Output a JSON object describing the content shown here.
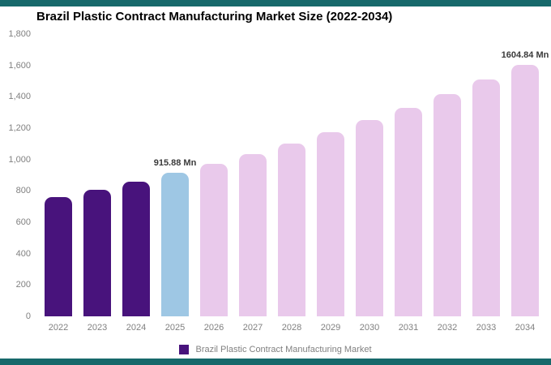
{
  "page": {
    "accent_bar_color": "#17696b"
  },
  "chart_data": {
    "type": "bar",
    "title": "Brazil Plastic Contract Manufacturing Market Size (2022-2034)",
    "categories": [
      "2022",
      "2023",
      "2024",
      "2025",
      "2026",
      "2027",
      "2028",
      "2029",
      "2030",
      "2031",
      "2032",
      "2033",
      "2034"
    ],
    "values": [
      760,
      809,
      861,
      915.88,
      975,
      1037,
      1104,
      1175,
      1251,
      1331,
      1417,
      1508,
      1604.84
    ],
    "bar_colors": [
      "#48137c",
      "#48137c",
      "#48137c",
      "#9ec7e4",
      "#e9c9eb",
      "#e9c9eb",
      "#e9c9eb",
      "#e9c9eb",
      "#e9c9eb",
      "#e9c9eb",
      "#e9c9eb",
      "#e9c9eb",
      "#e9c9eb"
    ],
    "ylim": [
      0,
      1800
    ],
    "ytick_step": 200,
    "ytick_labels": [
      "0",
      "200",
      "400",
      "600",
      "800",
      "1,000",
      "1,200",
      "1,400",
      "1,600",
      "1,800"
    ],
    "grid": false,
    "xlabel": "",
    "ylabel": "",
    "unit": "Mn",
    "annotations": [
      {
        "category": "2025",
        "text": "915.88 Mn"
      },
      {
        "category": "2034",
        "text": "1604.84 Mn"
      }
    ],
    "legend_position": "bottom",
    "legend": [
      {
        "label": "Brazil Plastic Contract Manufacturing Market",
        "color": "#48137c"
      }
    ]
  }
}
